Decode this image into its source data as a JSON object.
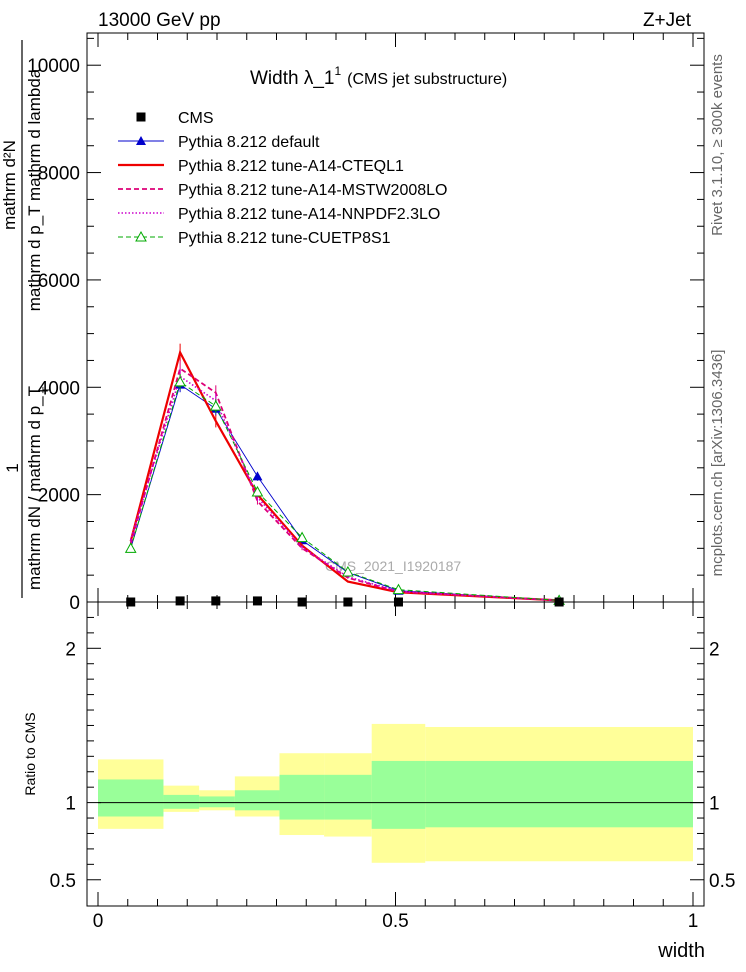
{
  "header": {
    "left": "13000 GeV pp",
    "right": "Z+Jet"
  },
  "side_labels": {
    "rivet": "Rivet 3.1.10, ≥ 300k events",
    "mcplots": "mcplots.cern.ch [arXiv:1306.3436]"
  },
  "chart_data": [
    {
      "type": "line",
      "title": "Width λ_1",
      "title_sup": "1",
      "title_note": "(CMS jet substructure)",
      "watermark": "CMS_2021_I1920187",
      "ylabel_parts": {
        "one": "1",
        "den": "mathrm dN / mathrm d p_T",
        "num": "mathrm d²N",
        "den2": "mathrm d p_T mathrm d lambda",
        "sub_t": "T"
      },
      "xlim": [
        0,
        1
      ],
      "ylim": [
        0,
        10600
      ],
      "yticks": [
        0,
        2000,
        4000,
        6000,
        8000,
        10000
      ],
      "ytick_labels": [
        "0",
        "2000",
        "4000",
        "6000",
        "8000",
        "10000"
      ],
      "legend_position": "top-left",
      "legend": [
        "CMS",
        "Pythia 8.212 default",
        "Pythia 8.212 tune-A14-CTEQL1",
        "Pythia 8.212 tune-A14-MSTW2008LO",
        "Pythia 8.212 tune-A14-NNPDF2.3LO",
        "Pythia 8.212 tune-CUETP8S1"
      ],
      "series": [
        {
          "name": "CMS",
          "color": "#000000",
          "style": "marker-square",
          "x": [
            0.055,
            0.138,
            0.198,
            0.268,
            0.343,
            0.42,
            0.505,
            0.775
          ],
          "y": [
            0,
            20,
            20,
            20,
            0,
            0,
            0,
            0
          ]
        },
        {
          "name": "Pythia 8.212 default",
          "color": "#0000cc",
          "style": "solid-thin-triangle",
          "x": [
            0.055,
            0.138,
            0.198,
            0.268,
            0.343,
            0.42,
            0.505,
            0.775
          ],
          "y": [
            1000,
            4050,
            3600,
            2340,
            1150,
            550,
            210,
            30
          ]
        },
        {
          "name": "Pythia 8.212 tune-A14-CTEQL1",
          "color": "#ee0000",
          "style": "solid-thick",
          "x": [
            0.055,
            0.138,
            0.198,
            0.268,
            0.343,
            0.42,
            0.505,
            0.775
          ],
          "y": [
            1130,
            4650,
            3370,
            2000,
            1050,
            380,
            180,
            30
          ]
        },
        {
          "name": "Pythia 8.212 tune-A14-MSTW2008LO",
          "color": "#dd0077",
          "style": "dashed",
          "x": [
            0.055,
            0.138,
            0.198,
            0.268,
            0.343,
            0.42,
            0.505,
            0.775
          ],
          "y": [
            1080,
            4350,
            3900,
            1880,
            1000,
            450,
            190,
            30
          ]
        },
        {
          "name": "Pythia 8.212 tune-A14-NNPDF2.3LO",
          "color": "#cc00cc",
          "style": "dotted",
          "x": [
            0.055,
            0.138,
            0.198,
            0.268,
            0.343,
            0.42,
            0.505,
            0.775
          ],
          "y": [
            1150,
            4200,
            3750,
            1950,
            1020,
            470,
            200,
            30
          ]
        },
        {
          "name": "Pythia 8.212 tune-CUETP8S1",
          "color": "#00aa00",
          "style": "dashed-open-triangle",
          "x": [
            0.055,
            0.138,
            0.198,
            0.268,
            0.343,
            0.42,
            0.505,
            0.775
          ],
          "y": [
            1000,
            4100,
            3650,
            2050,
            1200,
            560,
            230,
            30
          ]
        }
      ]
    },
    {
      "type": "area",
      "ylabel": "Ratio to CMS",
      "xlabel": "width",
      "xlim": [
        0,
        1
      ],
      "ylim": [
        0.33,
        2.3
      ],
      "yticks": [
        0.5,
        1,
        2
      ],
      "ytick_labels": [
        "0.5",
        "1",
        "2"
      ],
      "xticks": [
        0,
        0.5,
        1
      ],
      "xtick_labels": [
        "0",
        "0.5",
        "1"
      ],
      "bins": [
        {
          "x0": 0.0,
          "x1": 0.11,
          "inner": [
            0.91,
            1.15
          ],
          "outer": [
            0.83,
            1.28
          ]
        },
        {
          "x0": 0.11,
          "x1": 0.17,
          "inner": [
            0.96,
            1.05
          ],
          "outer": [
            0.94,
            1.11
          ]
        },
        {
          "x0": 0.17,
          "x1": 0.23,
          "inner": [
            0.97,
            1.04
          ],
          "outer": [
            0.95,
            1.08
          ]
        },
        {
          "x0": 0.23,
          "x1": 0.305,
          "inner": [
            0.95,
            1.08
          ],
          "outer": [
            0.91,
            1.17
          ]
        },
        {
          "x0": 0.305,
          "x1": 0.38,
          "inner": [
            0.89,
            1.18
          ],
          "outer": [
            0.79,
            1.32
          ]
        },
        {
          "x0": 0.38,
          "x1": 0.46,
          "inner": [
            0.89,
            1.18
          ],
          "outer": [
            0.78,
            1.32
          ]
        },
        {
          "x0": 0.46,
          "x1": 0.55,
          "inner": [
            0.83,
            1.27
          ],
          "outer": [
            0.61,
            1.51
          ]
        },
        {
          "x0": 0.55,
          "x1": 1.0,
          "inner": [
            0.84,
            1.27
          ],
          "outer": [
            0.62,
            1.49
          ]
        }
      ]
    }
  ]
}
